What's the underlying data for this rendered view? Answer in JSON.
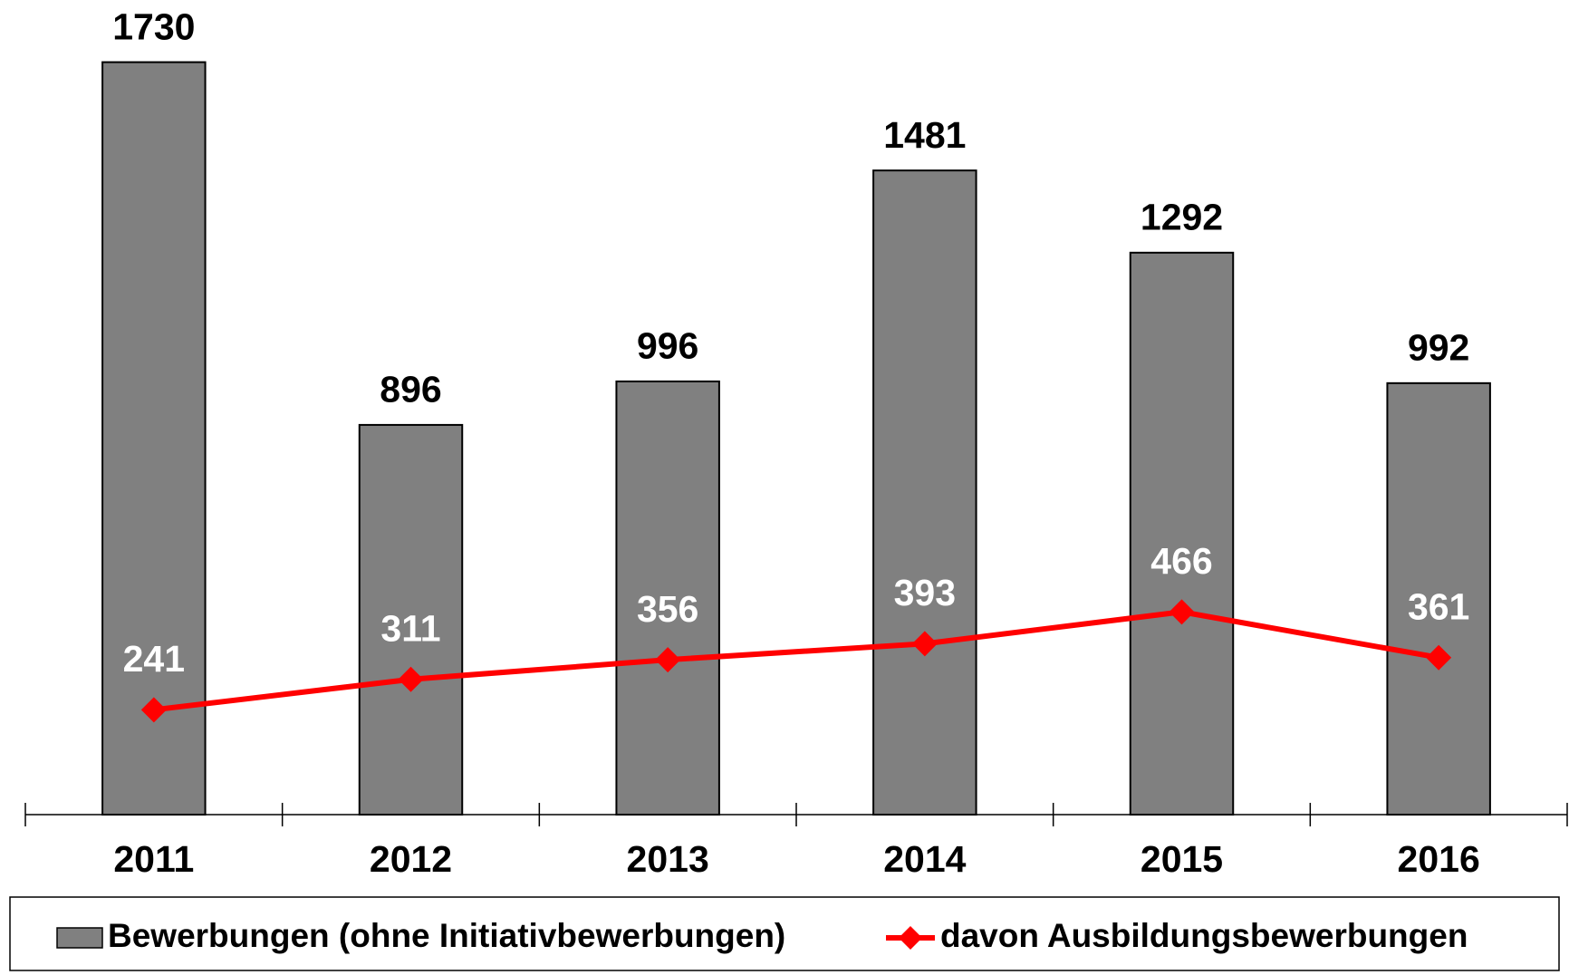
{
  "chart_data": {
    "type": "bar_line",
    "categories": [
      "2011",
      "2012",
      "2013",
      "2014",
      "2015",
      "2016"
    ],
    "series": [
      {
        "name": "Bewerbungen (ohne Initiativbewerbungen)",
        "type": "bar",
        "color": "#808080",
        "values": [
          1730,
          896,
          996,
          1481,
          1292,
          992
        ]
      },
      {
        "name": "davon Ausbildungsbewerbungen",
        "type": "line",
        "color": "#ff0000",
        "values": [
          241,
          311,
          356,
          393,
          466,
          361
        ]
      }
    ],
    "ylim": [
      0,
      1800
    ]
  }
}
